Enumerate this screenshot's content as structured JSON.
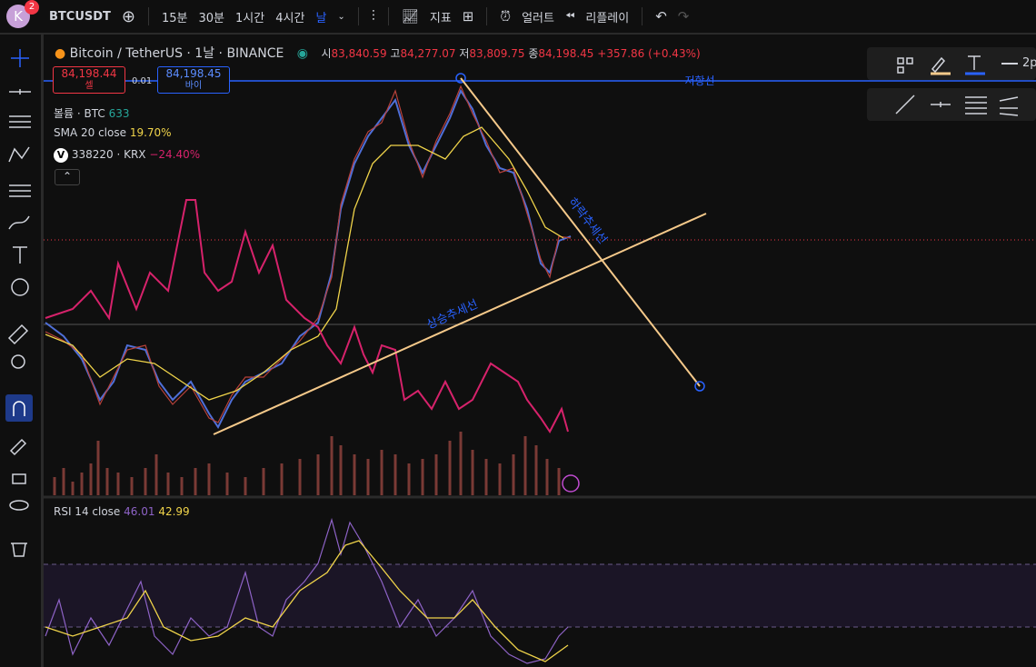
{
  "header": {
    "avatar": "K",
    "badge": "2",
    "symbol": "BTCUSDT",
    "intervals": [
      "15분",
      "30분",
      "1시간",
      "4시간",
      "날"
    ],
    "indicators": "지표",
    "alert": "얼러트",
    "replay": "리플레이"
  },
  "legend": {
    "title": "Bitcoin / TetherUS · 1날 · BINANCE",
    "open_label": "시",
    "open": "83,840.59",
    "high_label": "고",
    "high": "84,277.07",
    "low_label": "저",
    "low": "83,809.75",
    "close_label": "종",
    "close": "84,198.45",
    "change": "+357.86 (+0.43%)",
    "sell_price": "84,198.44",
    "sell": "셀",
    "spread": "0.01",
    "buy_price": "84,198.45",
    "buy": "바이",
    "volume": "볼륨 · BTC",
    "volume_value": "633",
    "sma": "SMA 20 close",
    "sma_value": "19.70%",
    "compare_logo": "V",
    "compare": "338220 · KRX",
    "compare_value": "−24.40%"
  },
  "drawings": {
    "resistance": "저항선",
    "downtrend": "하락추세선",
    "uptrend": "상승추세선"
  },
  "rsi": {
    "label": "RSI 14 close",
    "value": "46.01",
    "sma": "42.99"
  },
  "right_toolbar": {
    "width": "2p"
  }
}
